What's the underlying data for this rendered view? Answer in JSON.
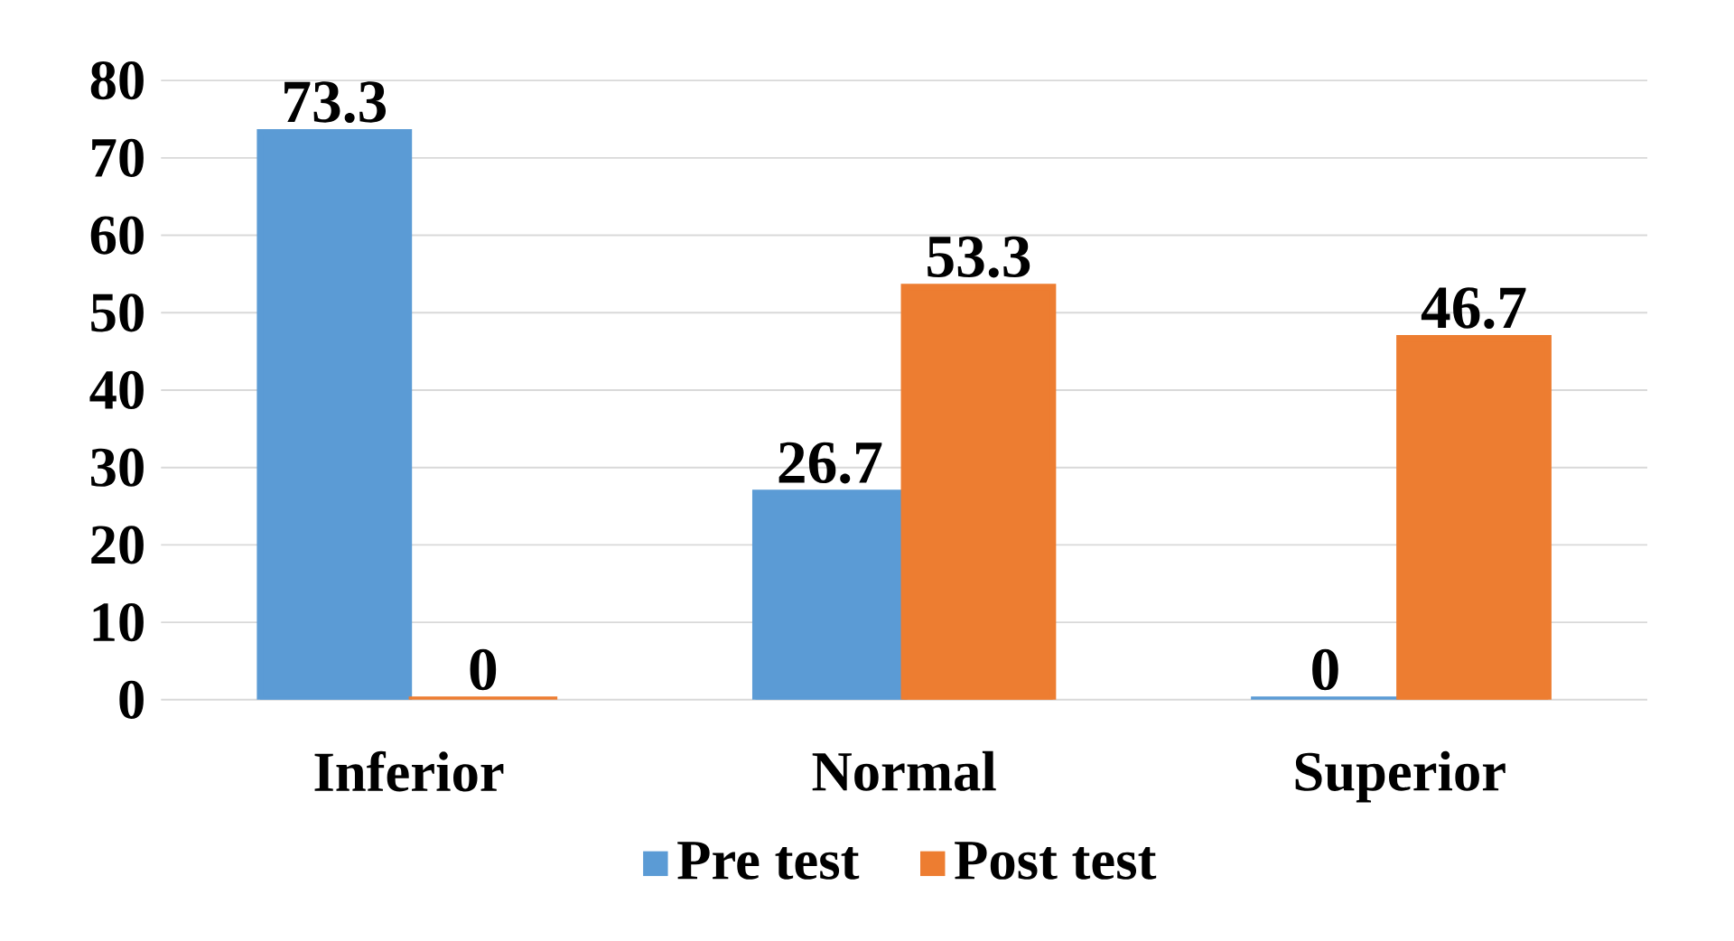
{
  "chart_data": {
    "type": "bar",
    "categories": [
      "Inferior",
      "Normal",
      "Superior"
    ],
    "series": [
      {
        "name": "Pre test",
        "color": "#5b9bd5",
        "values": [
          73.3,
          26.7,
          0
        ]
      },
      {
        "name": "Post test",
        "color": "#ed7d31",
        "values": [
          0,
          53.3,
          46.7
        ]
      }
    ],
    "ylim": [
      0,
      80
    ],
    "yticks": [
      0,
      10,
      20,
      30,
      40,
      50,
      60,
      70,
      80
    ],
    "grid": "y",
    "legend": "bottom",
    "data_labels": true
  }
}
